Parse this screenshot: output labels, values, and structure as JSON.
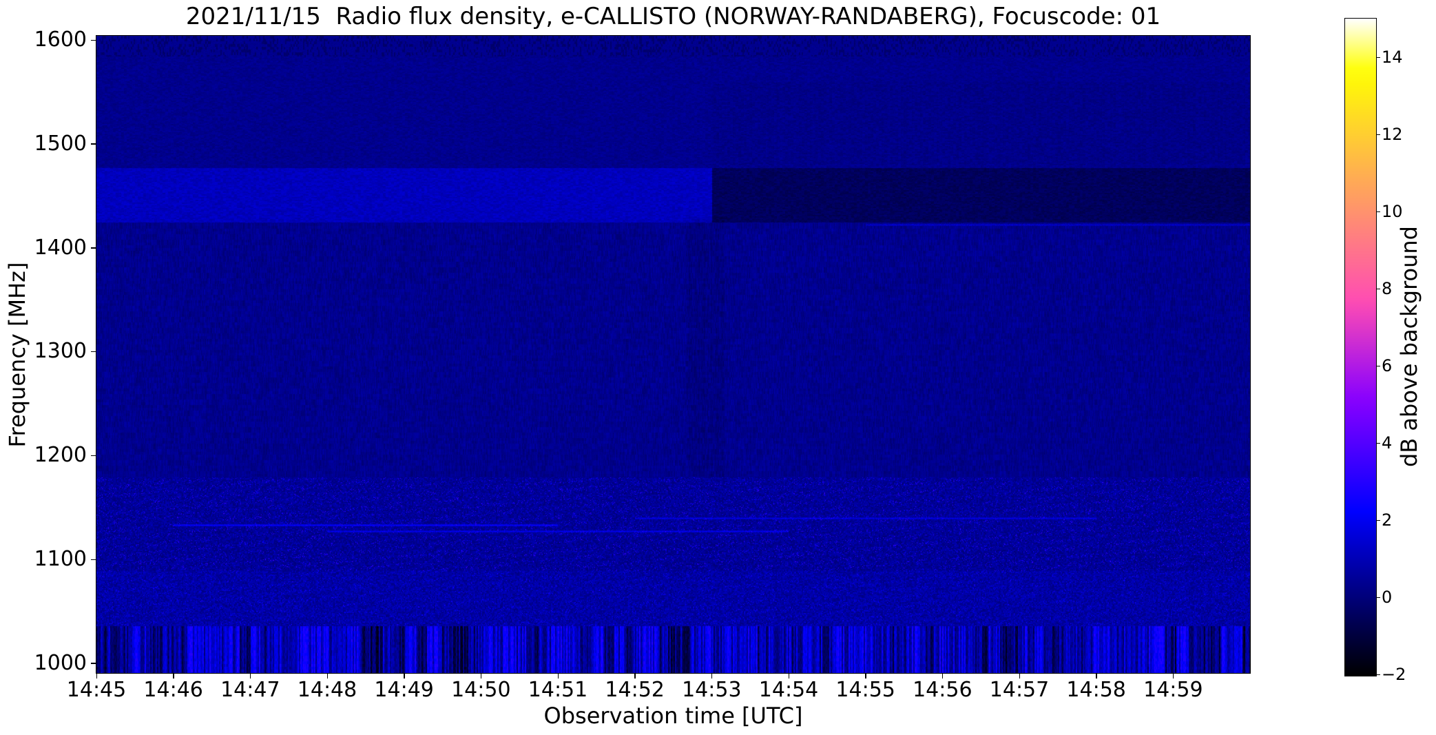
{
  "chart_data": {
    "type": "heatmap",
    "subtype": "radio-spectrogram",
    "title": "2021/11/15  Radio flux density, e-CALLISTO (NORWAY-RANDABERG), Focuscode: 01",
    "xlabel": "Observation time [UTC]",
    "ylabel": "Frequency [MHz]",
    "x_ticks": [
      "14:45",
      "14:46",
      "14:47",
      "14:48",
      "14:49",
      "14:50",
      "14:51",
      "14:52",
      "14:53",
      "14:54",
      "14:55",
      "14:56",
      "14:57",
      "14:58",
      "14:59"
    ],
    "x_range_utc": [
      "14:45:00",
      "15:00:00"
    ],
    "y_ticks": [
      "1600",
      "1500",
      "1400",
      "1300",
      "1200",
      "1100",
      "1000"
    ],
    "y_tick_values": [
      1600,
      1500,
      1400,
      1300,
      1200,
      1100,
      1000
    ],
    "y_range_mhz": [
      1000,
      1600
    ],
    "grid": false,
    "legend": null,
    "colorbar": {
      "label": "dB above background",
      "ticks": [
        "14",
        "12",
        "10",
        "8",
        "6",
        "4",
        "2",
        "0",
        "−2"
      ],
      "tick_values": [
        14,
        12,
        10,
        8,
        6,
        4,
        2,
        0,
        -2
      ],
      "vmin_db": -2,
      "vmax_db": 15,
      "colormap": "gnuplot2",
      "position": "right"
    },
    "background_level_db": 0.35,
    "bands": [
      {
        "name": "top-edge-dashes",
        "f": [
          1585,
          1604
        ],
        "level_db": 0.35,
        "noise_db": 0.55,
        "pattern": "dashes"
      },
      {
        "name": "upper-quiet",
        "f": [
          1478,
          1585
        ],
        "level_db": 0.35,
        "noise_db": 0.22,
        "pattern": "mottle"
      },
      {
        "name": "lnb-band-bright",
        "f": [
          1425,
          1478
        ],
        "t": [
          "14:45",
          "14:53"
        ],
        "level_db": 1.15,
        "noise_db": 0.3,
        "pattern": "mottle"
      },
      {
        "name": "lnb-band-dark",
        "f": [
          1425,
          1478
        ],
        "t": [
          "14:53",
          "15:00"
        ],
        "level_db": -0.45,
        "noise_db": 0.25,
        "pattern": "mottle"
      },
      {
        "name": "mid-quiet",
        "f": [
          1180,
          1425
        ],
        "level_db": 0.35,
        "noise_db": 0.32,
        "pattern": "hatch"
      },
      {
        "name": "gnss-speckle",
        "f": [
          1090,
          1180
        ],
        "level_db": 0.5,
        "noise_db": 0.45,
        "pattern": "speckle",
        "speckle_db": 3.0
      },
      {
        "name": "low-mottle",
        "f": [
          1037,
          1090
        ],
        "level_db": 0.7,
        "noise_db": 0.5,
        "pattern": "speckle",
        "speckle_db": 2.0
      },
      {
        "name": "bottom-stripes",
        "f": [
          991,
          1037
        ],
        "level_db": 0.4,
        "noise_db": 1.6,
        "pattern": "stripes",
        "stripe_min_db": -1.9,
        "stripe_max_db": 2.6
      }
    ],
    "lines": [
      {
        "f": 1422,
        "t": [
          "14:55",
          "15:00"
        ],
        "level_db": 1.4
      },
      {
        "f": 1133,
        "t": [
          "14:46",
          "14:51"
        ],
        "level_db": 2.1
      },
      {
        "f": 1127,
        "t": [
          "14:48",
          "14:54"
        ],
        "level_db": 1.9
      },
      {
        "f": 1140,
        "t": [
          "14:52",
          "14:58"
        ],
        "level_db": 1.7
      }
    ],
    "column_features": [
      {
        "t": [
          "14:52:40",
          "14:53:10"
        ],
        "f": [
          1180,
          1430
        ],
        "delta_db": -0.3
      },
      {
        "t": [
          "14:53:00",
          "15:00:00"
        ],
        "f": [
          1480,
          1560
        ],
        "delta_db": -0.15
      }
    ],
    "events": [
      {
        "time": "14:53",
        "description": "step drop of intensity in 1425-1478 MHz band"
      }
    ],
    "render_seed": 20211115
  }
}
